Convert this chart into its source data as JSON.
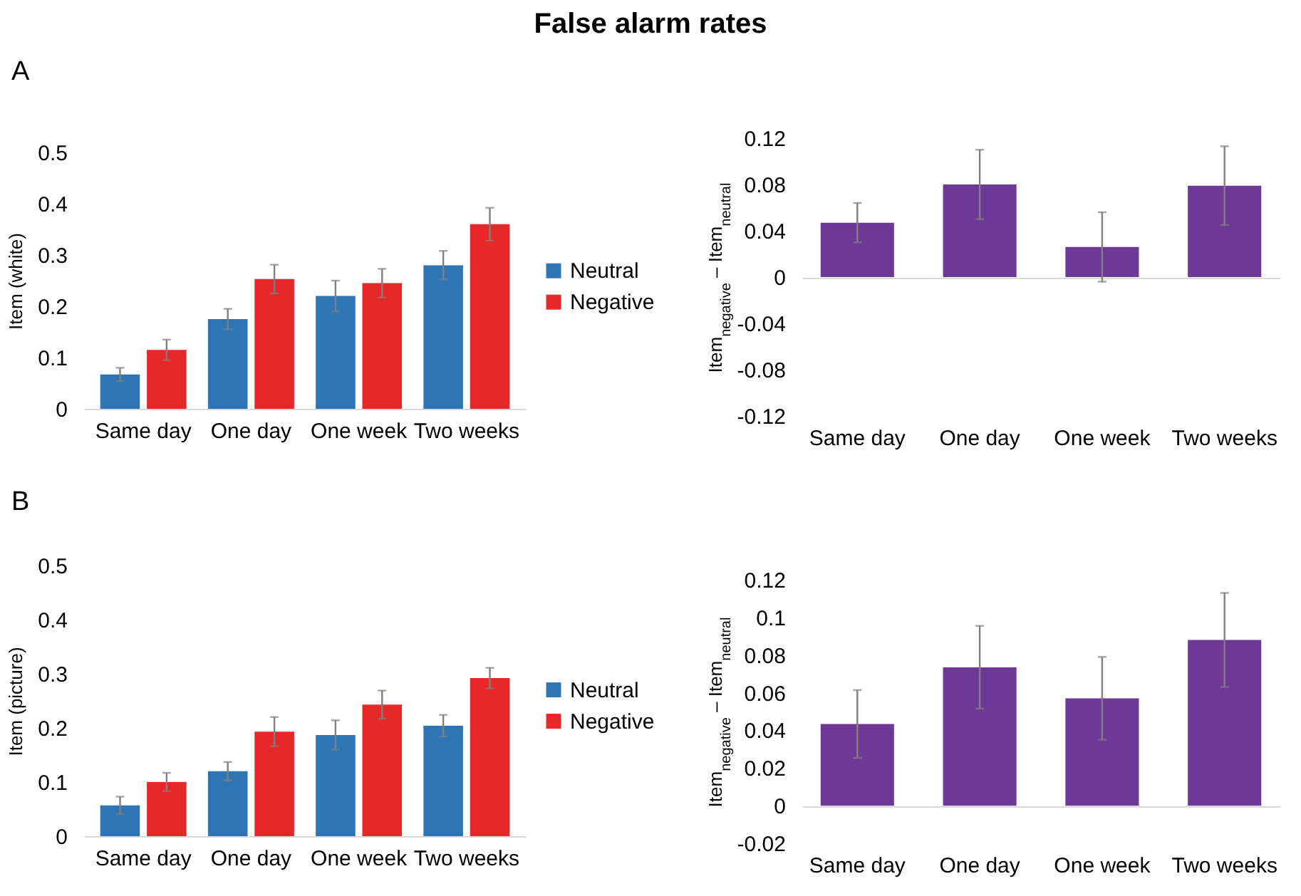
{
  "chart_data": [
    {
      "type": "bar",
      "title": "False alarm rates",
      "annotations": [
        "A"
      ],
      "categories": [
        "Same day",
        "One day",
        "One week",
        "Two weeks"
      ],
      "ylabel": "Item (white)",
      "ylim": [
        0,
        0.5
      ],
      "yticks": [
        0,
        0.1,
        0.2,
        0.3,
        0.4,
        0.5
      ],
      "legend": "right",
      "series": [
        {
          "name": "Neutral",
          "color": "#2e75b6",
          "values": [
            0.067,
            0.175,
            0.22,
            0.28
          ],
          "errors": [
            0.013,
            0.02,
            0.03,
            0.028
          ]
        },
        {
          "name": "Negative",
          "color": "#e82828",
          "values": [
            0.115,
            0.253,
            0.245,
            0.36
          ],
          "errors": [
            0.02,
            0.028,
            0.028,
            0.032
          ]
        }
      ]
    },
    {
      "type": "bar",
      "categories": [
        "Same day",
        "One day",
        "One week",
        "Two weeks"
      ],
      "ylabel": "Item$_{negative}$ – Item$_{neutral}$",
      "ylim": [
        -0.12,
        0.12
      ],
      "yticks": [
        -0.12,
        -0.08,
        -0.04,
        0,
        0.04,
        0.08,
        0.12
      ],
      "color": "#6e3996",
      "values": [
        0.047,
        0.08,
        0.026,
        0.079
      ],
      "errors": [
        0.017,
        0.03,
        0.03,
        0.034
      ]
    },
    {
      "type": "bar",
      "annotations": [
        "B"
      ],
      "categories": [
        "Same day",
        "One day",
        "One week",
        "Two weeks"
      ],
      "ylabel": "Item (picture)",
      "ylim": [
        0,
        0.5
      ],
      "yticks": [
        0,
        0.1,
        0.2,
        0.3,
        0.4,
        0.5
      ],
      "legend": "right",
      "series": [
        {
          "name": "Neutral",
          "color": "#2e75b6",
          "values": [
            0.057,
            0.12,
            0.187,
            0.204
          ],
          "errors": [
            0.016,
            0.017,
            0.027,
            0.02
          ]
        },
        {
          "name": "Negative",
          "color": "#e82828",
          "values": [
            0.1,
            0.193,
            0.243,
            0.292
          ],
          "errors": [
            0.017,
            0.027,
            0.026,
            0.019
          ]
        }
      ]
    },
    {
      "type": "bar",
      "categories": [
        "Same day",
        "One day",
        "One week",
        "Two weeks"
      ],
      "ylabel": "Item$_{negative}$ – Item$_{neutral}$",
      "ylim": [
        -0.02,
        0.12
      ],
      "yticks": [
        -0.02,
        0,
        0.02,
        0.04,
        0.06,
        0.08,
        0.1,
        0.12
      ],
      "color": "#6e3996",
      "values": [
        0.0434,
        0.0735,
        0.057,
        0.088
      ],
      "errors": [
        0.018,
        0.022,
        0.022,
        0.025
      ]
    }
  ]
}
